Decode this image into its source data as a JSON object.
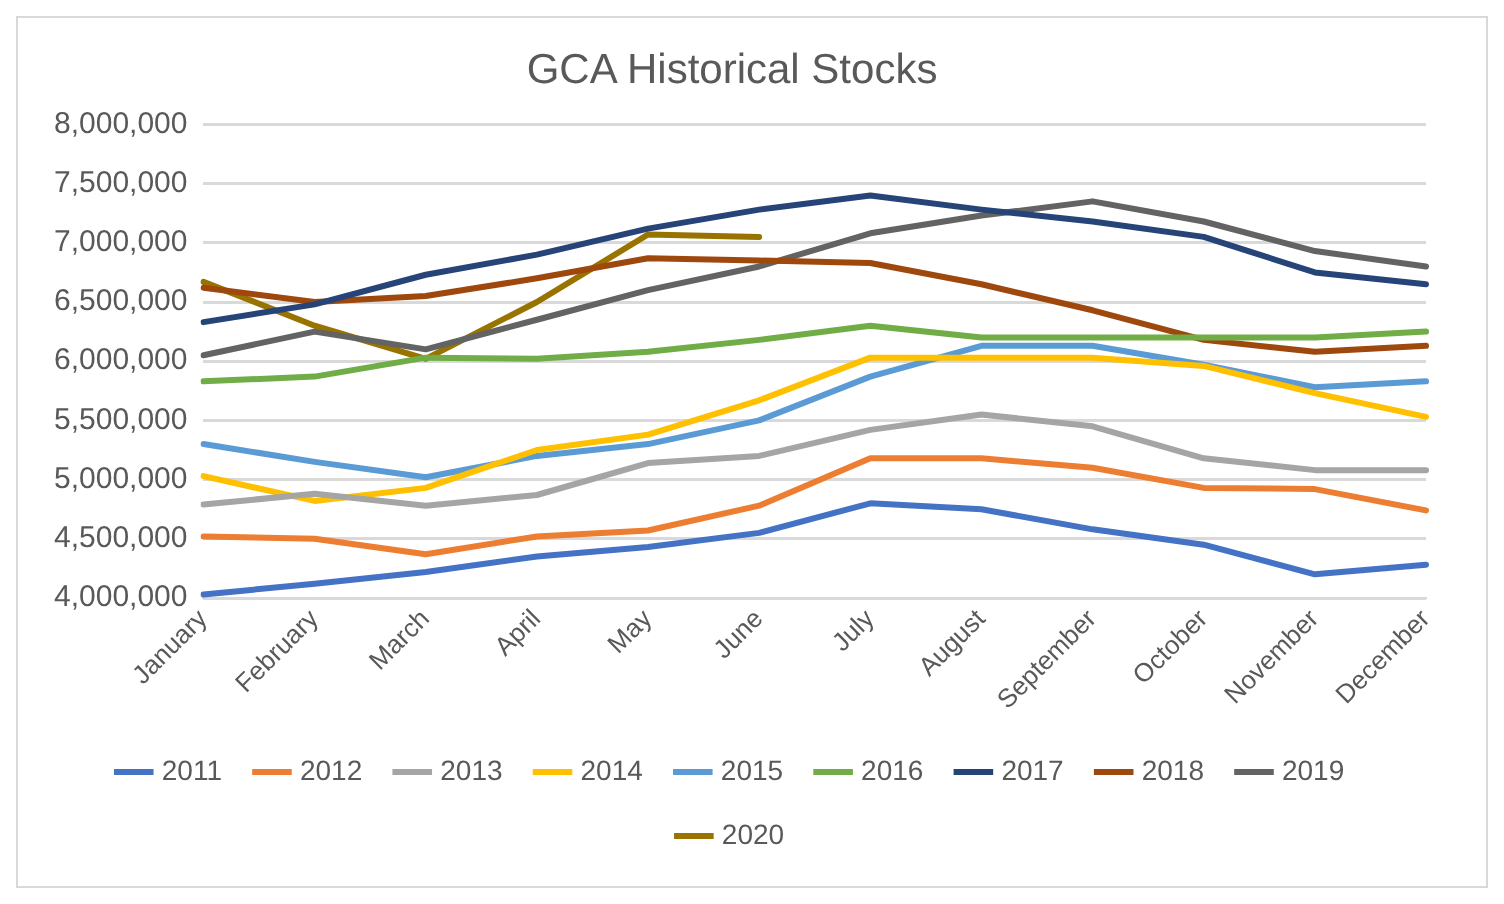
{
  "chart_data": {
    "type": "line",
    "title": "GCA Historical Stocks",
    "categories": [
      "January",
      "February",
      "March",
      "April",
      "May",
      "June",
      "July",
      "August",
      "September",
      "October",
      "November",
      "December"
    ],
    "series": [
      {
        "name": "2011",
        "color": "#4472c4",
        "values": [
          4030000,
          4120000,
          4220000,
          4350000,
          4430000,
          4550000,
          4800000,
          4750000,
          4580000,
          4450000,
          4200000,
          4280000
        ]
      },
      {
        "name": "2012",
        "color": "#ed7d31",
        "values": [
          4520000,
          4500000,
          4370000,
          4520000,
          4570000,
          4780000,
          5180000,
          5180000,
          5100000,
          4930000,
          4920000,
          4740000
        ]
      },
      {
        "name": "2013",
        "color": "#a5a5a5",
        "values": [
          4790000,
          4880000,
          4780000,
          4870000,
          5140000,
          5200000,
          5420000,
          5550000,
          5450000,
          5180000,
          5080000,
          5080000
        ]
      },
      {
        "name": "2014",
        "color": "#ffc000",
        "values": [
          5030000,
          4820000,
          4930000,
          5250000,
          5380000,
          5670000,
          6030000,
          6030000,
          6030000,
          5960000,
          5730000,
          5530000
        ]
      },
      {
        "name": "2015",
        "color": "#5b9bd5",
        "values": [
          5300000,
          5150000,
          5020000,
          5200000,
          5300000,
          5500000,
          5870000,
          6130000,
          6130000,
          5970000,
          5780000,
          5830000
        ]
      },
      {
        "name": "2016",
        "color": "#70ad47",
        "values": [
          5830000,
          5870000,
          6030000,
          6020000,
          6080000,
          6180000,
          6300000,
          6200000,
          6200000,
          6200000,
          6200000,
          6250000
        ]
      },
      {
        "name": "2017",
        "color": "#264478",
        "values": [
          6330000,
          6480000,
          6730000,
          6900000,
          7120000,
          7280000,
          7400000,
          7280000,
          7180000,
          7050000,
          6750000,
          6650000
        ]
      },
      {
        "name": "2018",
        "color": "#9e480e",
        "values": [
          6620000,
          6500000,
          6550000,
          6700000,
          6870000,
          6850000,
          6830000,
          6650000,
          6430000,
          6180000,
          6080000,
          6130000
        ]
      },
      {
        "name": "2019",
        "color": "#636363",
        "values": [
          6050000,
          6250000,
          6100000,
          6350000,
          6600000,
          6800000,
          7080000,
          7230000,
          7350000,
          7180000,
          6930000,
          6800000
        ]
      },
      {
        "name": "2020",
        "color": "#997300",
        "values": [
          6670000,
          6300000,
          6020000,
          6500000,
          7070000,
          7050000,
          null,
          null,
          null,
          null,
          null,
          null
        ]
      }
    ],
    "ylim": [
      4000000,
      8000000
    ],
    "yticks": [
      {
        "value": 4000000,
        "label": "4,000,000"
      },
      {
        "value": 4500000,
        "label": "4,500,000"
      },
      {
        "value": 5000000,
        "label": "5,000,000"
      },
      {
        "value": 5500000,
        "label": "5,500,000"
      },
      {
        "value": 6000000,
        "label": "6,000,000"
      },
      {
        "value": 6500000,
        "label": "6,500,000"
      },
      {
        "value": 7000000,
        "label": "7,000,000"
      },
      {
        "value": 7500000,
        "label": "7,500,000"
      },
      {
        "value": 8000000,
        "label": "8,000,000"
      }
    ],
    "grid": "y",
    "legend": "bottom",
    "marker": "none",
    "line_style": "solid"
  }
}
